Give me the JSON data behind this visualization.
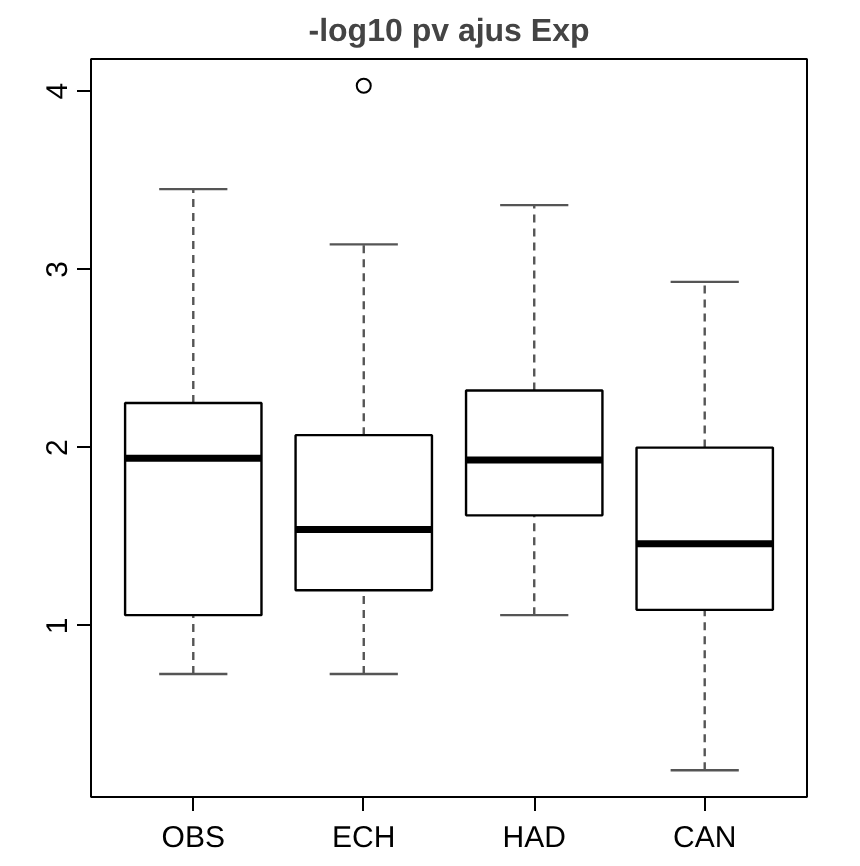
{
  "chart_data": {
    "type": "box",
    "title": "-log10 pv ajus Exp",
    "categories": [
      "OBS",
      "ECH",
      "HAD",
      "CAN"
    ],
    "boxes": [
      {
        "low": 0.73,
        "q1": 1.06,
        "median": 1.94,
        "q3": 2.25,
        "high": 3.45
      },
      {
        "low": 0.73,
        "q1": 1.2,
        "median": 1.54,
        "q3": 2.07,
        "high": 3.14,
        "outliers": [
          4.03
        ]
      },
      {
        "low": 1.06,
        "q1": 1.62,
        "median": 1.93,
        "q3": 2.32,
        "high": 3.36
      },
      {
        "low": 0.19,
        "q1": 1.09,
        "median": 1.46,
        "q3": 2.0,
        "high": 2.93
      }
    ],
    "ylim": [
      0.04,
      4.18
    ],
    "yticks": [
      1,
      2,
      3,
      4
    ],
    "grid": false
  }
}
